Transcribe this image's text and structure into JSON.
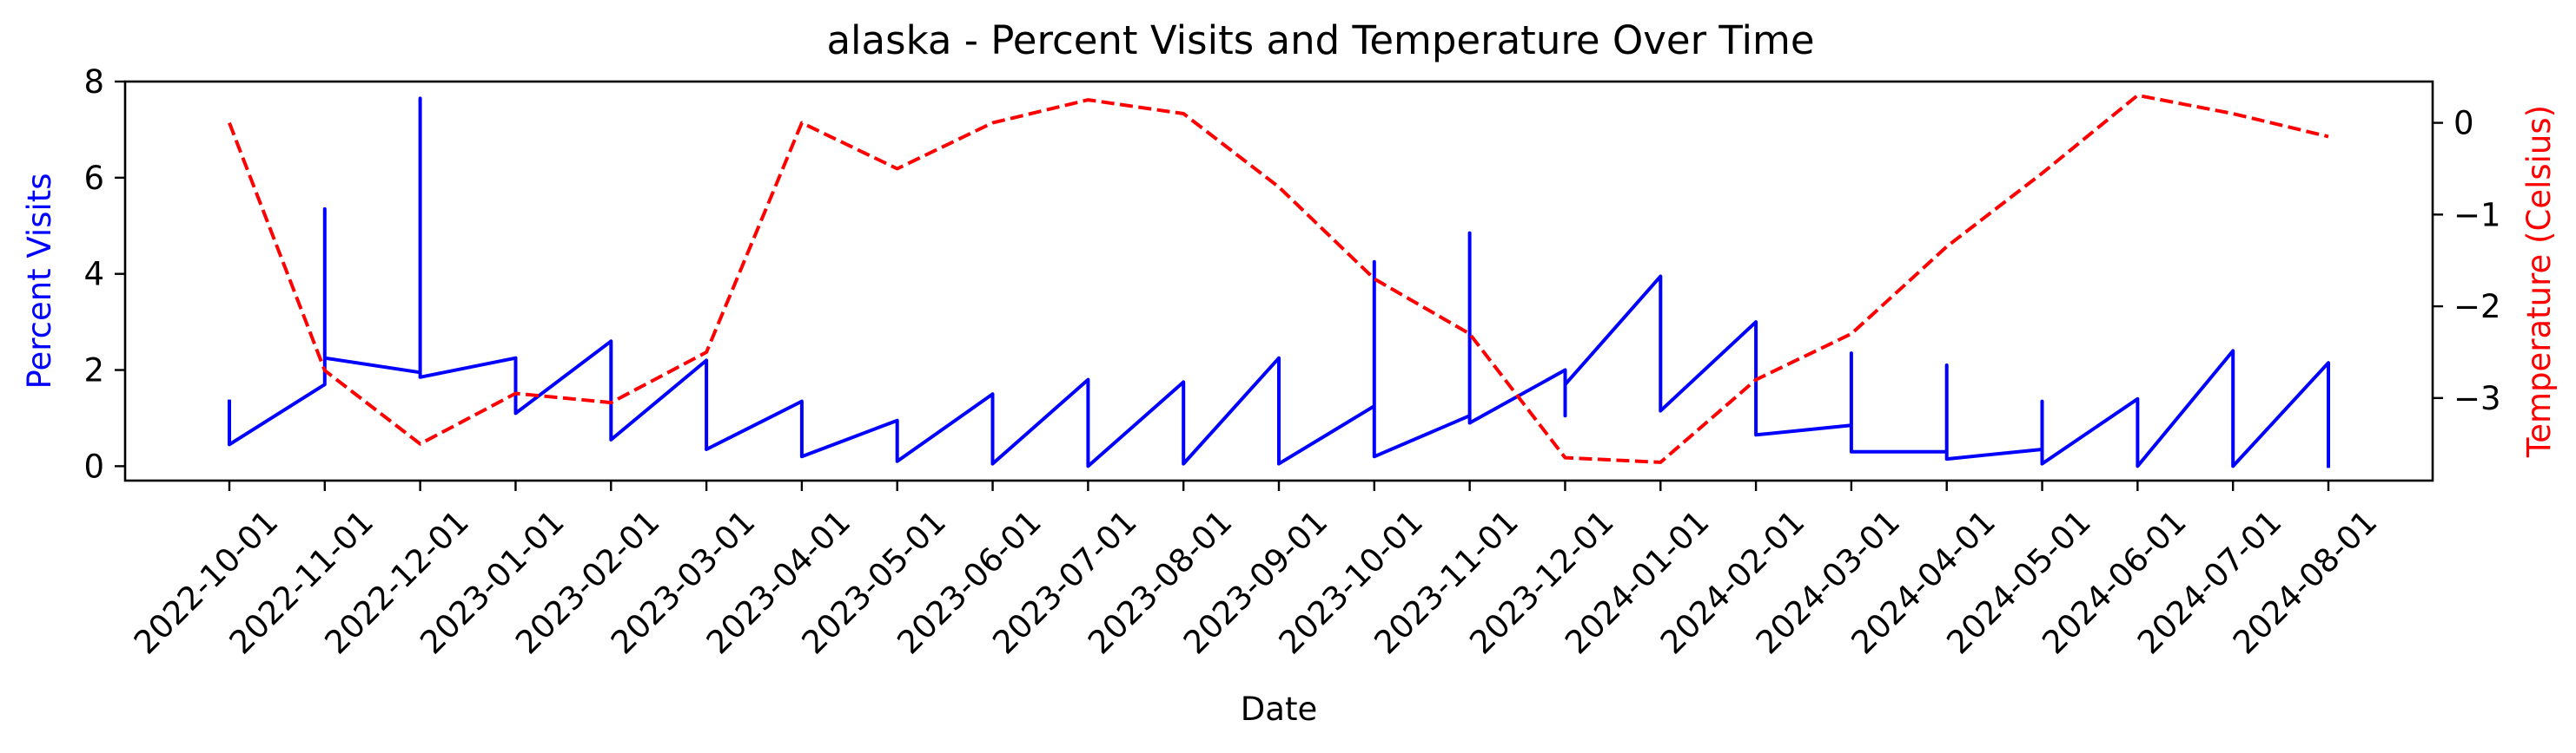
{
  "chart_data": {
    "type": "line",
    "title": "alaska - Percent Visits and Temperature Over Time",
    "xlabel": "Date",
    "ylabel_left": "Percent Visits",
    "ylabel_right": "Temperature (Celsius)",
    "left_axis_color": "#0000ff",
    "right_axis_color": "#ff0000",
    "x_tick_labels": [
      "2022-10-01",
      "2022-11-01",
      "2022-12-01",
      "2023-01-01",
      "2023-02-01",
      "2023-03-01",
      "2023-04-01",
      "2023-05-01",
      "2023-06-01",
      "2023-07-01",
      "2023-08-01",
      "2023-09-01",
      "2023-10-01",
      "2023-11-01",
      "2023-12-01",
      "2024-01-01",
      "2024-02-01",
      "2024-03-01",
      "2024-04-01",
      "2024-05-01",
      "2024-06-01",
      "2024-07-01",
      "2024-08-01"
    ],
    "ylim_left": [
      -0.3,
      8.0
    ],
    "yticks_left": [
      0,
      2,
      4,
      6,
      8
    ],
    "ylim_right": [
      -3.9,
      0.45
    ],
    "yticks_right": [
      0,
      -1,
      -2,
      -3
    ],
    "grid": false,
    "series": [
      {
        "axis": "left",
        "color": "#0000ff",
        "style": "solid",
        "points": [
          [
            "2022-10-01",
            1.35
          ],
          [
            "2022-10-01",
            0.45
          ],
          [
            "2022-11-01",
            1.7
          ],
          [
            "2022-11-01",
            5.35
          ],
          [
            "2022-11-01",
            2.25
          ],
          [
            "2022-12-01",
            1.95
          ],
          [
            "2022-12-01",
            7.65
          ],
          [
            "2022-12-01",
            1.85
          ],
          [
            "2023-01-01",
            2.25
          ],
          [
            "2023-01-01",
            1.1
          ],
          [
            "2023-02-01",
            2.6
          ],
          [
            "2023-02-01",
            0.55
          ],
          [
            "2023-03-01",
            2.2
          ],
          [
            "2023-03-01",
            0.35
          ],
          [
            "2023-04-01",
            1.35
          ],
          [
            "2023-04-01",
            0.2
          ],
          [
            "2023-05-01",
            0.95
          ],
          [
            "2023-05-01",
            0.1
          ],
          [
            "2023-06-01",
            1.5
          ],
          [
            "2023-06-01",
            0.05
          ],
          [
            "2023-07-01",
            1.8
          ],
          [
            "2023-07-01",
            0.0
          ],
          [
            "2023-08-01",
            1.75
          ],
          [
            "2023-08-01",
            0.05
          ],
          [
            "2023-09-01",
            2.25
          ],
          [
            "2023-09-01",
            0.05
          ],
          [
            "2023-10-01",
            1.25
          ],
          [
            "2023-10-01",
            4.25
          ],
          [
            "2023-10-01",
            0.2
          ],
          [
            "2023-11-01",
            1.05
          ],
          [
            "2023-11-01",
            4.85
          ],
          [
            "2023-11-01",
            0.9
          ],
          [
            "2023-12-01",
            2.0
          ],
          [
            "2023-12-01",
            1.05
          ],
          [
            "2023-12-01",
            1.7
          ],
          [
            "2024-01-01",
            3.95
          ],
          [
            "2024-01-01",
            1.15
          ],
          [
            "2024-02-01",
            3.0
          ],
          [
            "2024-02-01",
            0.65
          ],
          [
            "2024-03-01",
            0.85
          ],
          [
            "2024-03-01",
            2.35
          ],
          [
            "2024-03-01",
            0.3
          ],
          [
            "2024-04-01",
            0.3
          ],
          [
            "2024-04-01",
            2.1
          ],
          [
            "2024-04-01",
            0.15
          ],
          [
            "2024-05-01",
            0.35
          ],
          [
            "2024-05-01",
            1.35
          ],
          [
            "2024-05-01",
            0.05
          ],
          [
            "2024-06-01",
            1.4
          ],
          [
            "2024-06-01",
            0.0
          ],
          [
            "2024-07-01",
            2.4
          ],
          [
            "2024-07-01",
            0.0
          ],
          [
            "2024-08-01",
            2.15
          ],
          [
            "2024-08-01",
            0.0
          ]
        ]
      },
      {
        "axis": "right",
        "color": "#ff0000",
        "style": "dashed",
        "points": [
          [
            "2022-10-01",
            0.0
          ],
          [
            "2022-11-01",
            -2.7
          ],
          [
            "2022-12-01",
            -3.5
          ],
          [
            "2023-01-01",
            -2.95
          ],
          [
            "2023-02-01",
            -3.05
          ],
          [
            "2023-03-01",
            -2.5
          ],
          [
            "2023-04-01",
            0.0
          ],
          [
            "2023-05-01",
            -0.5
          ],
          [
            "2023-06-01",
            0.0
          ],
          [
            "2023-07-01",
            0.25
          ],
          [
            "2023-08-01",
            0.1
          ],
          [
            "2023-09-01",
            -0.7
          ],
          [
            "2023-10-01",
            -1.7
          ],
          [
            "2023-11-01",
            -2.3
          ],
          [
            "2023-12-01",
            -3.65
          ],
          [
            "2024-01-01",
            -3.7
          ],
          [
            "2024-02-01",
            -2.8
          ],
          [
            "2024-03-01",
            -2.3
          ],
          [
            "2024-04-01",
            -1.35
          ],
          [
            "2024-05-01",
            -0.55
          ],
          [
            "2024-06-01",
            0.3
          ],
          [
            "2024-07-01",
            0.1
          ],
          [
            "2024-08-01",
            -0.15
          ]
        ]
      }
    ]
  }
}
